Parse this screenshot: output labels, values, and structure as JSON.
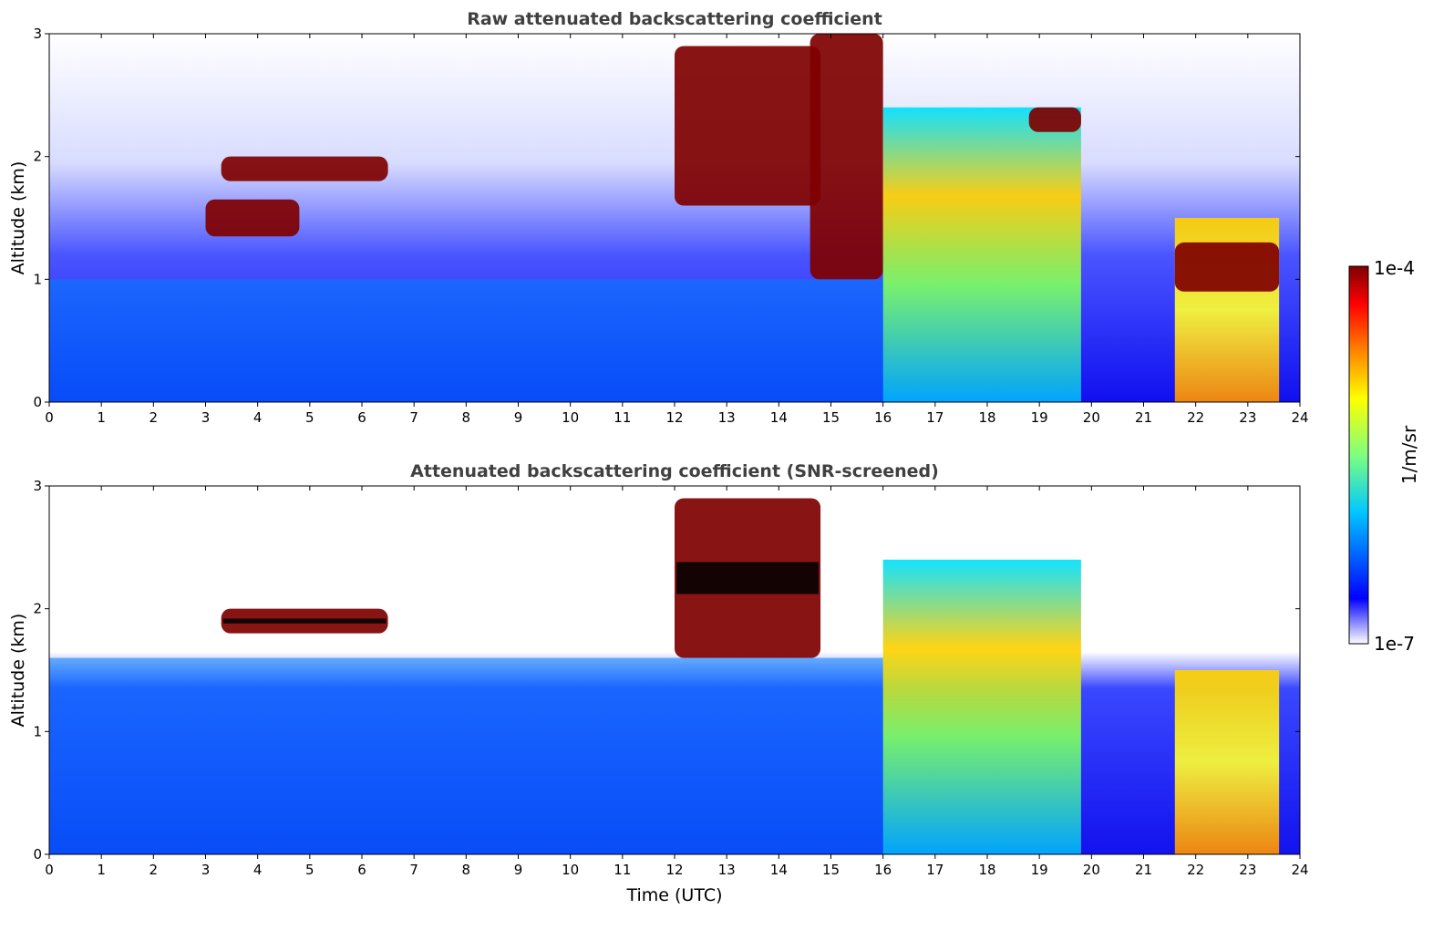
{
  "figure": {
    "colorbar": {
      "label": "1/m/sr",
      "max_label": "1e-4",
      "min_label": "1e-7",
      "scale": "log",
      "range": [
        1e-07,
        0.0001
      ],
      "colormap": [
        "#ffffff",
        "#0000ff",
        "#00c8ff",
        "#7fff7f",
        "#ffff00",
        "#ff7f00",
        "#ff0000",
        "#7f0000"
      ]
    }
  },
  "chart_data": [
    {
      "type": "heatmap",
      "title": "Raw attenuated backscattering coefficient",
      "xlabel": "",
      "ylabel": "Altitude (km)",
      "xlim": [
        0,
        24
      ],
      "ylim": [
        0,
        3
      ],
      "x_ticks": [
        "0",
        "1",
        "2",
        "3",
        "4",
        "5",
        "6",
        "7",
        "8",
        "9",
        "10",
        "11",
        "12",
        "13",
        "14",
        "15",
        "16",
        "17",
        "18",
        "19",
        "20",
        "21",
        "22",
        "23",
        "24"
      ],
      "y_ticks": [
        "0",
        "1",
        "2",
        "3"
      ],
      "features": [
        {
          "time": [
            3.3,
            6.5
          ],
          "altitude": [
            1.8,
            2.0
          ],
          "level": "1e-4"
        },
        {
          "time": [
            3.0,
            4.8
          ],
          "altitude": [
            1.35,
            1.65
          ],
          "level": "1e-4"
        },
        {
          "time": [
            12.0,
            14.8
          ],
          "altitude": [
            1.6,
            2.9
          ],
          "level": "1e-4"
        },
        {
          "time": [
            14.6,
            16.0
          ],
          "altitude": [
            1.0,
            3.0
          ],
          "level": "1e-4"
        },
        {
          "time": [
            16.0,
            19.8
          ],
          "altitude": [
            0.0,
            2.4
          ],
          "level": "5e-6"
        },
        {
          "time": [
            18.8,
            19.8
          ],
          "altitude": [
            2.2,
            2.4
          ],
          "level": "1e-4"
        },
        {
          "time": [
            21.6,
            23.6
          ],
          "altitude": [
            0.0,
            1.5
          ],
          "level": "1e-5"
        },
        {
          "time": [
            21.6,
            23.6
          ],
          "altitude": [
            0.9,
            1.3
          ],
          "level": "1e-4"
        },
        {
          "time": [
            0.0,
            16.0
          ],
          "altitude": [
            0.0,
            1.0
          ],
          "level": "5e-7"
        }
      ]
    },
    {
      "type": "heatmap",
      "title": "Attenuated backscattering coefficient (SNR-screened)",
      "xlabel": "Time (UTC)",
      "ylabel": "Altitude (km)",
      "xlim": [
        0,
        24
      ],
      "ylim": [
        0,
        3
      ],
      "x_ticks": [
        "0",
        "1",
        "2",
        "3",
        "4",
        "5",
        "6",
        "7",
        "8",
        "9",
        "10",
        "11",
        "12",
        "13",
        "14",
        "15",
        "16",
        "17",
        "18",
        "19",
        "20",
        "21",
        "22",
        "23",
        "24"
      ],
      "y_ticks": [
        "0",
        "1",
        "2",
        "3"
      ],
      "features": [
        {
          "time": [
            3.3,
            6.5
          ],
          "altitude": [
            1.8,
            2.0
          ],
          "level": "1e-4"
        },
        {
          "time": [
            0.0,
            16.0
          ],
          "altitude": [
            0.0,
            1.6
          ],
          "level": "5e-7"
        },
        {
          "time": [
            12.0,
            14.8
          ],
          "altitude": [
            1.6,
            2.9
          ],
          "level": "1e-4"
        },
        {
          "time": [
            16.0,
            19.8
          ],
          "altitude": [
            0.0,
            2.4
          ],
          "level": "5e-6"
        },
        {
          "time": [
            21.6,
            23.6
          ],
          "altitude": [
            0.0,
            1.5
          ],
          "level": "1e-5"
        }
      ]
    }
  ]
}
